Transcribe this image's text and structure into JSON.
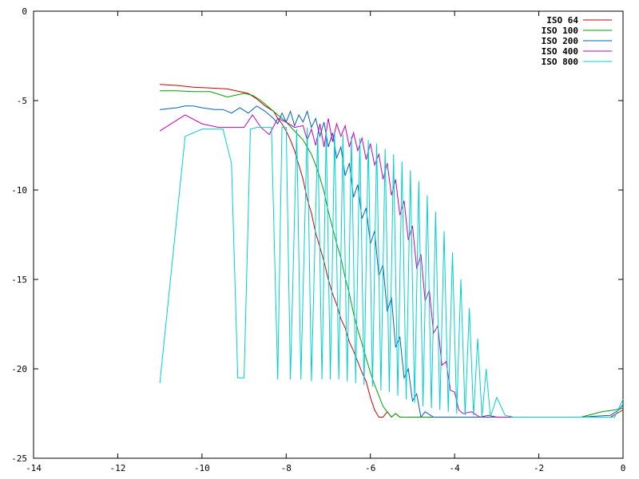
{
  "chart_data": {
    "type": "line",
    "title": "",
    "xlabel": "",
    "ylabel": "",
    "xlim": [
      -14,
      0
    ],
    "ylim": [
      -25,
      0
    ],
    "grid": false,
    "legend_position": "top-right",
    "x_ticks": [
      {
        "value": -14,
        "label": "-14"
      },
      {
        "value": -12,
        "label": "-12"
      },
      {
        "value": -10,
        "label": "-10"
      },
      {
        "value": -8,
        "label": "-8"
      },
      {
        "value": -6,
        "label": "-6"
      },
      {
        "value": -4,
        "label": "-4"
      },
      {
        "value": -2,
        "label": "-2"
      },
      {
        "value": 0,
        "label": "0"
      }
    ],
    "y_ticks": [
      {
        "value": 0,
        "label": "0"
      },
      {
        "value": -5,
        "label": "-5"
      },
      {
        "value": -10,
        "label": "-10"
      },
      {
        "value": -15,
        "label": "-15"
      },
      {
        "value": -20,
        "label": "-20"
      },
      {
        "value": -25,
        "label": "-25"
      }
    ],
    "series": [
      {
        "name": "ISO 64",
        "color": "#cc0000",
        "x": [
          -11,
          -10.6,
          -10.2,
          -9.8,
          -9.4,
          -9.1,
          -8.9,
          -8.7,
          -8.5,
          -8.3,
          -8.2,
          -8.1,
          -8.0,
          -7.9,
          -7.8,
          -7.7,
          -7.6,
          -7.5,
          -7.4,
          -7.3,
          -7.2,
          -7.1,
          -7.0,
          -6.9,
          -6.8,
          -6.7,
          -6.6,
          -6.5,
          -6.4,
          -6.3,
          -6.2,
          -6.1,
          -6.0,
          -5.9,
          -5.8,
          -5.7,
          -5.6,
          -5.5,
          -5.4,
          -5.3,
          -5.2,
          -5.0,
          -4.5,
          -4.0,
          -3.0,
          -2.0,
          -1.0,
          -0.3,
          0.0
        ],
        "y": [
          -4.1,
          -4.15,
          -4.25,
          -4.3,
          -4.35,
          -4.5,
          -4.6,
          -4.9,
          -5.3,
          -5.6,
          -6.0,
          -6.3,
          -6.7,
          -7.2,
          -7.8,
          -8.6,
          -9.4,
          -10.5,
          -11.3,
          -12.4,
          -13.2,
          -14.0,
          -15.0,
          -15.8,
          -16.4,
          -17.2,
          -17.7,
          -18.5,
          -19.0,
          -19.6,
          -20.2,
          -20.7,
          -21.6,
          -22.3,
          -22.7,
          -22.7,
          -22.4,
          -22.7,
          -22.5,
          -22.7,
          -22.7,
          -22.7,
          -22.7,
          -22.7,
          -22.7,
          -22.7,
          -22.7,
          -22.7,
          -22.3
        ]
      },
      {
        "name": "ISO 100",
        "color": "#00a000",
        "x": [
          -11,
          -10.6,
          -10.2,
          -9.8,
          -9.4,
          -9.2,
          -9.0,
          -8.8,
          -8.6,
          -8.4,
          -8.2,
          -8.0,
          -7.8,
          -7.6,
          -7.4,
          -7.3,
          -7.2,
          -7.1,
          -7.0,
          -6.9,
          -6.8,
          -6.7,
          -6.6,
          -6.5,
          -6.4,
          -6.3,
          -6.2,
          -6.1,
          -6.0,
          -5.9,
          -5.8,
          -5.7,
          -5.6,
          -5.5,
          -5.4,
          -5.3,
          -5.0,
          -4.0,
          -3.0,
          -2.0,
          -1.0,
          -0.5,
          -0.2,
          0.0
        ],
        "y": [
          -4.45,
          -4.45,
          -4.5,
          -4.5,
          -4.8,
          -4.7,
          -4.6,
          -4.7,
          -5.0,
          -5.4,
          -5.8,
          -6.2,
          -6.7,
          -7.2,
          -8.0,
          -8.6,
          -9.3,
          -10.1,
          -11.2,
          -12.1,
          -13.0,
          -13.8,
          -14.9,
          -15.8,
          -16.9,
          -17.8,
          -18.6,
          -19.4,
          -20.2,
          -20.9,
          -21.5,
          -22.1,
          -22.4,
          -22.7,
          -22.5,
          -22.7,
          -22.7,
          -22.7,
          -22.7,
          -22.7,
          -22.7,
          -22.4,
          -22.3,
          -22.2
        ]
      },
      {
        "name": "ISO 200",
        "color": "#0060c0",
        "x": [
          -11,
          -10.6,
          -10.4,
          -10.2,
          -10.0,
          -9.7,
          -9.5,
          -9.3,
          -9.1,
          -8.9,
          -8.7,
          -8.5,
          -8.3,
          -8.2,
          -8.1,
          -8.0,
          -7.9,
          -7.8,
          -7.7,
          -7.6,
          -7.5,
          -7.4,
          -7.3,
          -7.2,
          -7.1,
          -7.0,
          -6.9,
          -6.8,
          -6.7,
          -6.6,
          -6.5,
          -6.4,
          -6.3,
          -6.2,
          -6.1,
          -6.0,
          -5.9,
          -5.8,
          -5.7,
          -5.6,
          -5.5,
          -5.4,
          -5.3,
          -5.2,
          -5.1,
          -5.0,
          -4.9,
          -4.8,
          -4.7,
          -4.5,
          -4.0,
          -3.0,
          -2.0,
          -1.0,
          -0.3,
          -0.1,
          0.0
        ],
        "y": [
          -5.5,
          -5.4,
          -5.3,
          -5.3,
          -5.4,
          -5.5,
          -5.5,
          -5.7,
          -5.4,
          -5.7,
          -5.3,
          -5.6,
          -6.0,
          -6.3,
          -5.7,
          -6.2,
          -5.6,
          -6.4,
          -5.8,
          -6.2,
          -5.6,
          -6.5,
          -6.0,
          -7.0,
          -6.2,
          -7.6,
          -6.8,
          -8.2,
          -7.6,
          -9.2,
          -8.5,
          -10.4,
          -9.7,
          -11.6,
          -11.0,
          -13.0,
          -12.3,
          -14.8,
          -14.2,
          -16.8,
          -16.0,
          -18.8,
          -18.2,
          -20.5,
          -20.0,
          -21.8,
          -21.4,
          -22.7,
          -22.4,
          -22.7,
          -22.7,
          -22.7,
          -22.7,
          -22.7,
          -22.6,
          -22.3,
          -22.0
        ]
      },
      {
        "name": "ISO 400",
        "color": "#c000c0",
        "x": [
          -11,
          -10.4,
          -10.0,
          -9.6,
          -9.2,
          -9.0,
          -8.8,
          -8.6,
          -8.4,
          -8.2,
          -8.0,
          -7.8,
          -7.6,
          -7.5,
          -7.4,
          -7.3,
          -7.2,
          -7.1,
          -7.0,
          -6.9,
          -6.8,
          -6.7,
          -6.6,
          -6.5,
          -6.4,
          -6.3,
          -6.2,
          -6.1,
          -6.0,
          -5.9,
          -5.8,
          -5.7,
          -5.6,
          -5.5,
          -5.4,
          -5.3,
          -5.2,
          -5.1,
          -5.0,
          -4.9,
          -4.8,
          -4.7,
          -4.6,
          -4.5,
          -4.4,
          -4.3,
          -4.2,
          -4.1,
          -4.0,
          -3.9,
          -3.8,
          -3.6,
          -3.4,
          -3.2,
          -3.0,
          -2.8,
          -2.6
        ],
        "y": [
          -6.7,
          -5.8,
          -6.3,
          -6.5,
          -6.5,
          -6.5,
          -5.8,
          -6.5,
          -6.9,
          -6.0,
          -6.2,
          -6.5,
          -6.4,
          -7.2,
          -6.6,
          -7.5,
          -6.3,
          -7.6,
          -6.0,
          -7.3,
          -6.3,
          -7.0,
          -6.4,
          -7.6,
          -6.8,
          -7.8,
          -7.1,
          -8.3,
          -7.4,
          -8.6,
          -8.0,
          -9.4,
          -8.5,
          -10.3,
          -9.4,
          -11.4,
          -10.6,
          -12.8,
          -12.0,
          -14.4,
          -13.6,
          -16.2,
          -15.6,
          -18.0,
          -17.6,
          -19.8,
          -19.6,
          -21.2,
          -21.3,
          -22.3,
          -22.5,
          -22.4,
          -22.7,
          -22.6,
          -22.7,
          -22.7,
          -22.7
        ]
      },
      {
        "name": "ISO 800",
        "color": "#00d0d0",
        "x": [
          -11,
          -10.4,
          -10.0,
          -9.7,
          -9.5,
          -9.3,
          -9.15,
          -9.0,
          -8.85,
          -8.7,
          -8.5,
          -8.35,
          -8.2,
          -8.1,
          -8.0,
          -7.9,
          -7.75,
          -7.65,
          -7.5,
          -7.4,
          -7.25,
          -7.15,
          -7.05,
          -6.95,
          -6.85,
          -6.75,
          -6.65,
          -6.55,
          -6.45,
          -6.35,
          -6.25,
          -6.15,
          -6.05,
          -5.95,
          -5.85,
          -5.75,
          -5.65,
          -5.55,
          -5.45,
          -5.35,
          -5.25,
          -5.15,
          -5.05,
          -4.95,
          -4.85,
          -4.75,
          -4.65,
          -4.55,
          -4.45,
          -4.35,
          -4.25,
          -4.15,
          -4.05,
          -3.95,
          -3.85,
          -3.75,
          -3.65,
          -3.55,
          -3.45,
          -3.35,
          -3.25,
          -3.15,
          -3.0,
          -2.8,
          -2.6,
          -2.0,
          -1.0,
          -0.2,
          0.0
        ],
        "y": [
          -20.8,
          -7.0,
          -6.6,
          -6.6,
          -6.6,
          -8.5,
          -20.5,
          -20.5,
          -6.6,
          -6.5,
          -6.5,
          -6.5,
          -20.6,
          -6.5,
          -6.5,
          -20.6,
          -6.6,
          -20.6,
          -6.5,
          -20.7,
          -6.8,
          -20.6,
          -6.7,
          -20.6,
          -6.8,
          -20.6,
          -6.9,
          -20.7,
          -7.0,
          -20.8,
          -7.1,
          -20.9,
          -7.2,
          -21.0,
          -7.4,
          -21.2,
          -7.7,
          -21.3,
          -8.0,
          -21.5,
          -8.4,
          -21.7,
          -8.9,
          -21.9,
          -9.5,
          -22.1,
          -10.3,
          -22.2,
          -11.2,
          -22.3,
          -12.3,
          -22.4,
          -13.5,
          -22.5,
          -15.0,
          -22.6,
          -16.6,
          -22.6,
          -18.3,
          -22.7,
          -20.0,
          -22.7,
          -21.6,
          -22.6,
          -22.7,
          -22.7,
          -22.7,
          -22.7,
          -21.7
        ]
      }
    ]
  }
}
